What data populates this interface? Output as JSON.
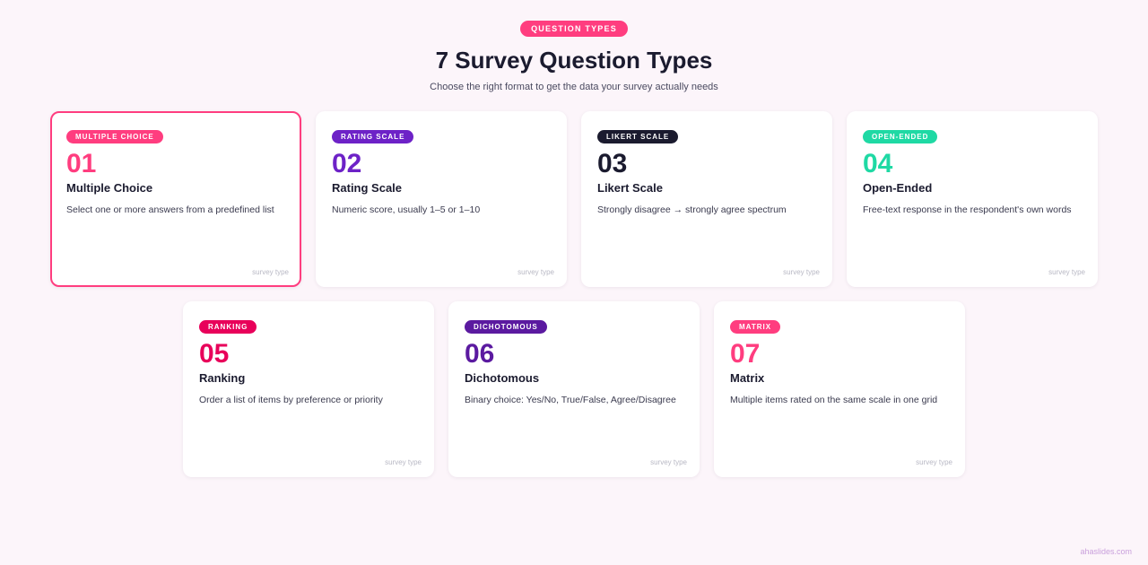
{
  "header": {
    "pill": "QUESTION TYPES",
    "title": "7 Survey Question Types",
    "subtitle": "Choose the right format to get the data your survey actually needs"
  },
  "cards": [
    {
      "tag": "MULTIPLE CHOICE",
      "number": "01",
      "title": "Multiple Choice",
      "desc": "Select one or more answers from a predefined list",
      "foot": "survey type",
      "color": "#ff3d7f",
      "active": true
    },
    {
      "tag": "RATING SCALE",
      "number": "02",
      "title": "Rating Scale",
      "desc": "Numeric score, usually 1–5 or 1–10",
      "foot": "survey type",
      "color": "#6d22c7"
    },
    {
      "tag": "LIKERT SCALE",
      "number": "03",
      "title": "Likert Scale",
      "desc": "Strongly disagree → strongly agree spectrum",
      "foot": "survey type",
      "color": "#1b1b2f"
    },
    {
      "tag": "OPEN-ENDED",
      "number": "04",
      "title": "Open-Ended",
      "desc": "Free-text response in the respondent's own words",
      "foot": "survey type",
      "color": "#1fd9a4"
    },
    {
      "tag": "RANKING",
      "number": "05",
      "title": "Ranking",
      "desc": "Order a list of items by preference or priority",
      "foot": "survey type",
      "color": "#e8005a"
    },
    {
      "tag": "DICHOTOMOUS",
      "number": "06",
      "title": "Dichotomous",
      "desc": "Binary choice: Yes/No, True/False, Agree/Disagree",
      "foot": "survey type",
      "color": "#5b1aa0"
    },
    {
      "tag": "MATRIX",
      "number": "07",
      "title": "Matrix",
      "desc": "Multiple items rated on the same scale in one grid",
      "foot": "survey type",
      "color": "#ff3d7f"
    }
  ],
  "brand": "ahaslides.com"
}
